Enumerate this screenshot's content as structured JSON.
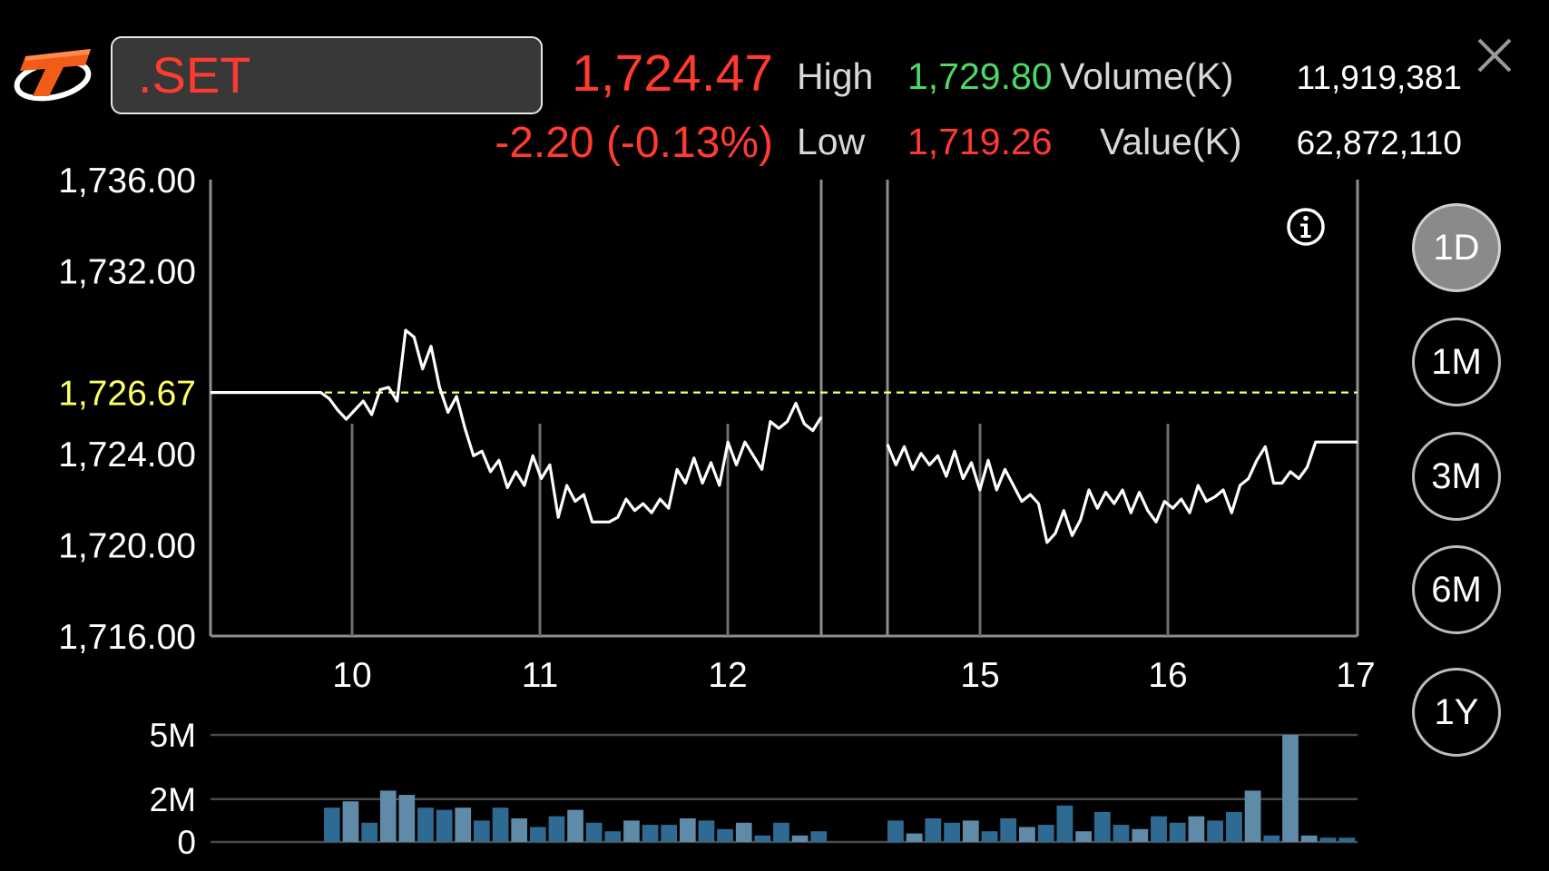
{
  "header": {
    "logo_icon": "thanachart-t-logo-icon",
    "symbol": ".SET",
    "last_price": "1,724.47",
    "change": "-2.20 (-0.13%)",
    "high_label": "High",
    "high_value": "1,729.80",
    "low_label": "Low",
    "low_value": "1,719.26",
    "volume_label": "Volume(K)",
    "volume_value": "11,919,381",
    "value_label": "Value(K)",
    "value_value": "62,872,110",
    "close_icon": "close-icon"
  },
  "colors": {
    "down": "#ff3b30",
    "up": "#4cd964",
    "reference": "#ffff66",
    "price_line": "#ffffff",
    "volume_bar": "#2e6a92",
    "volume_bar_light": "#5f8aa8"
  },
  "info_icon": "info-icon",
  "periods": {
    "active": "1D",
    "items": [
      "1D",
      "1M",
      "3M",
      "6M",
      "1Y"
    ]
  },
  "chart_data": [
    {
      "type": "line",
      "y_ticks": [
        "1,736.00",
        "1,732.00",
        "1,724.00",
        "1,720.00",
        "1,716.00"
      ],
      "ylim": [
        1716,
        1736
      ],
      "reference_price": 1726.67,
      "reference_label": "1,726.67",
      "x_ticks": [
        "10",
        "11",
        "12",
        "15",
        "16",
        "17"
      ],
      "segments": [
        {
          "x_start": 9.25,
          "x_end": 12.5,
          "values": [
            1726.67,
            1726.67,
            1726.67,
            1726.67,
            1726.67,
            1726.67,
            1726.67,
            1726.67,
            1726.67,
            1726.67,
            1726.67,
            1726.67,
            1726.67,
            1726.67,
            1726.4,
            1725.9,
            1725.5,
            1725.9,
            1726.3,
            1725.7,
            1726.8,
            1726.9,
            1726.3,
            1729.4,
            1729.1,
            1727.7,
            1728.7,
            1726.9,
            1725.8,
            1726.5,
            1725.1,
            1723.9,
            1724.1,
            1723.2,
            1723.7,
            1722.5,
            1723.2,
            1722.6,
            1723.9,
            1722.9,
            1723.5,
            1721.2,
            1722.6,
            1721.9,
            1722.2,
            1721.0,
            1721.0,
            1721.0,
            1721.2,
            1722.0,
            1721.5,
            1721.8,
            1721.4,
            1722.0,
            1721.6,
            1723.3,
            1722.7,
            1723.8,
            1722.7,
            1723.6,
            1722.6,
            1724.5,
            1723.5,
            1724.5,
            1723.9,
            1723.3,
            1725.4,
            1725.1,
            1725.4,
            1726.2,
            1725.3,
            1725.0,
            1725.6
          ]
        },
        {
          "x_start": 14.5,
          "x_end": 17.0,
          "values": [
            1724.4,
            1723.5,
            1724.3,
            1723.3,
            1724.0,
            1723.5,
            1723.9,
            1723.0,
            1724.1,
            1722.9,
            1723.6,
            1722.4,
            1723.7,
            1722.4,
            1723.3,
            1722.6,
            1721.9,
            1722.2,
            1721.8,
            1720.1,
            1720.5,
            1721.5,
            1720.4,
            1721.1,
            1722.4,
            1721.6,
            1722.3,
            1721.8,
            1722.4,
            1721.4,
            1722.3,
            1721.5,
            1721.0,
            1721.9,
            1721.6,
            1722.0,
            1721.4,
            1722.6,
            1721.9,
            1722.1,
            1722.4,
            1721.4,
            1722.6,
            1722.9,
            1723.7,
            1724.3,
            1722.7,
            1722.7,
            1723.2,
            1722.9,
            1723.4,
            1724.5,
            1724.5,
            1724.5,
            1724.5,
            1724.5,
            1724.5
          ]
        }
      ]
    },
    {
      "type": "bar",
      "y_ticks": [
        "5M",
        "2M",
        "0"
      ],
      "ylim": [
        0,
        5
      ],
      "segments": [
        {
          "x_start": 9.75,
          "x_end": 12.5,
          "values": [
            1.6,
            1.9,
            0.9,
            2.4,
            2.2,
            1.6,
            1.5,
            1.6,
            1.0,
            1.6,
            1.1,
            0.7,
            1.2,
            1.5,
            0.9,
            0.5,
            1.0,
            0.8,
            0.8,
            1.1,
            1.0,
            0.6,
            0.9,
            0.3,
            0.9,
            0.3,
            0.5
          ]
        },
        {
          "x_start": 14.5,
          "x_end": 17.0,
          "values": [
            1.0,
            0.4,
            1.1,
            0.9,
            1.0,
            0.5,
            1.1,
            0.7,
            0.8,
            1.7,
            0.5,
            1.4,
            0.8,
            0.6,
            1.2,
            0.9,
            1.2,
            1.0,
            1.4,
            2.4,
            0.3,
            5.0,
            0.3,
            0.2,
            0.2
          ]
        }
      ]
    }
  ]
}
